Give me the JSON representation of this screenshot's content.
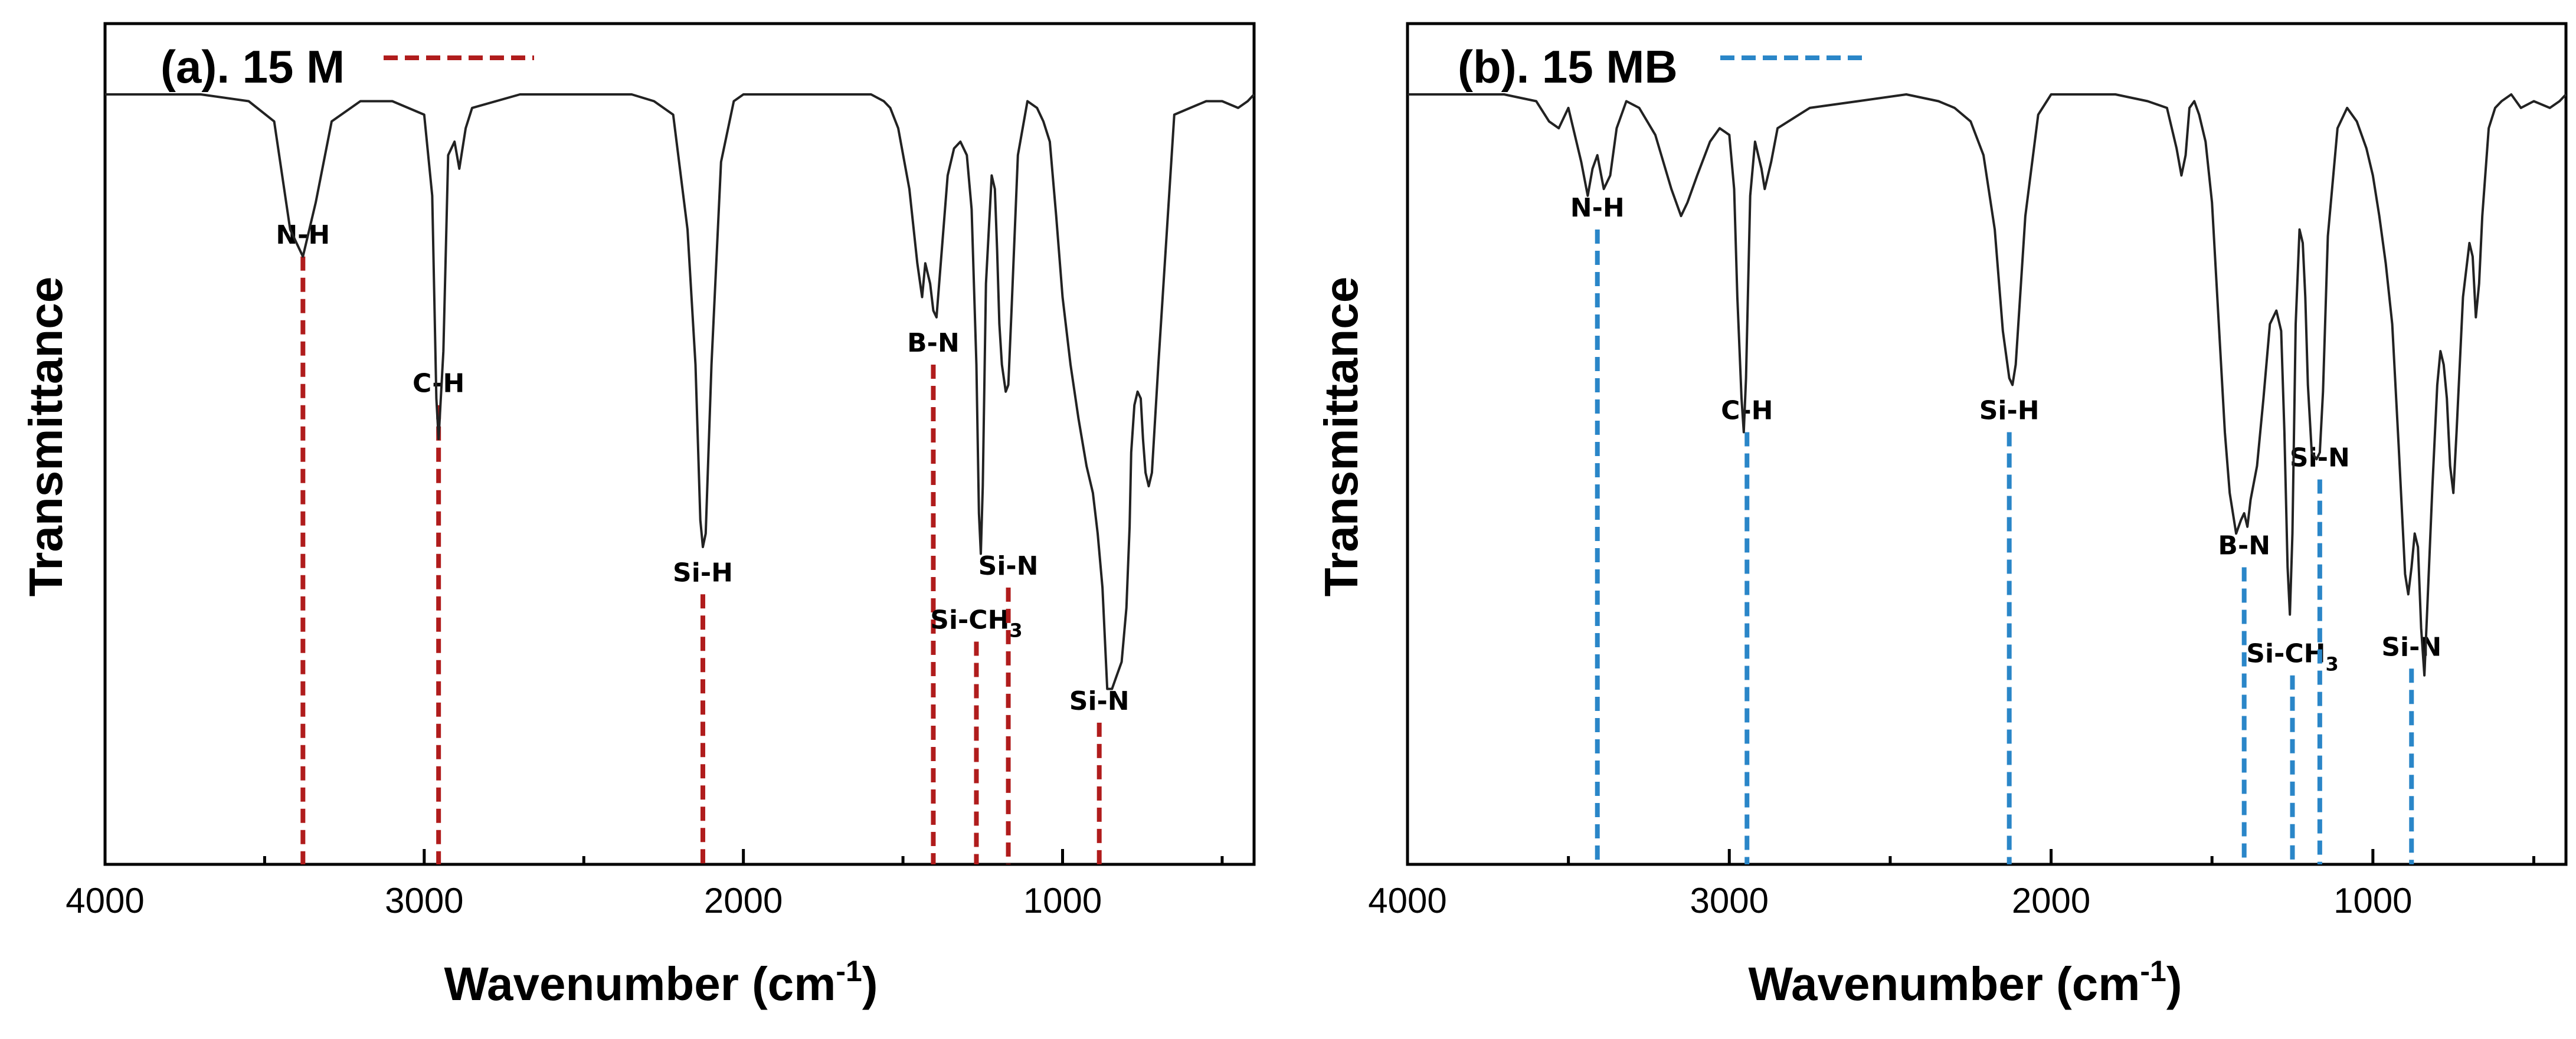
{
  "colors": {
    "a": "#b01c1c",
    "b": "#2a86c8"
  },
  "chart_data": [
    {
      "type": "line",
      "panel_label": "(a). 15 M",
      "legend_style": "dashed",
      "xlabel": "Wavenumber (cm",
      "xlabel_sup": "-1",
      "xlabel_tail": ")",
      "ylabel": "Transmittance",
      "xlim": [
        4000,
        400
      ],
      "ylim": [
        0,
        100
      ],
      "xticks": [
        4000,
        3000,
        2000,
        1000
      ],
      "xtick_labels": [
        "4000",
        "3000",
        "2000",
        "1000"
      ],
      "color": "#b01c1c",
      "series": [
        {
          "name": "15 M",
          "x": [
            4000,
            3700,
            3550,
            3470,
            3420,
            3380,
            3340,
            3290,
            3200,
            3100,
            3000,
            2975,
            2962,
            2955,
            2940,
            2925,
            2905,
            2890,
            2870,
            2850,
            2700,
            2500,
            2350,
            2280,
            2220,
            2175,
            2150,
            2135,
            2127,
            2118,
            2100,
            2070,
            2030,
            2000,
            1900,
            1800,
            1700,
            1600,
            1560,
            1540,
            1515,
            1480,
            1455,
            1440,
            1430,
            1415,
            1405,
            1395,
            1380,
            1360,
            1340,
            1320,
            1300,
            1285,
            1270,
            1262,
            1256,
            1250,
            1240,
            1222,
            1212,
            1205,
            1198,
            1190,
            1178,
            1170,
            1160,
            1140,
            1110,
            1080,
            1060,
            1040,
            1020,
            1000,
            975,
            950,
            925,
            905,
            890,
            875,
            860,
            845,
            830,
            815,
            800,
            790,
            785,
            775,
            765,
            755,
            748,
            740,
            730,
            720,
            700,
            650,
            600,
            550,
            500,
            450,
            420,
            400
          ],
          "y": [
            100,
            100,
            99,
            96,
            80,
            76,
            84,
            96,
            99,
            99,
            97,
            85,
            55,
            49,
            62,
            91,
            93,
            89,
            95,
            98,
            100,
            100,
            100,
            99,
            97,
            80,
            60,
            37,
            33,
            35,
            60,
            90,
            99,
            100,
            100,
            100,
            100,
            100,
            99,
            98,
            95,
            86,
            75,
            70,
            75,
            72,
            68,
            67,
            76,
            88,
            92,
            93,
            91,
            83,
            60,
            38,
            32,
            42,
            72,
            88,
            86,
            77,
            66,
            60,
            56,
            57,
            68,
            91,
            99,
            98,
            96,
            93,
            82,
            70,
            60,
            52,
            45,
            41,
            35,
            27,
            12,
            12,
            14,
            16,
            24,
            36,
            47,
            54,
            56,
            55,
            49,
            44,
            42,
            44,
            60,
            97,
            98,
            99,
            99,
            98,
            99,
            100
          ]
        }
      ],
      "annotations": [
        {
          "text": "N-H",
          "x": 3380,
          "y": 76
        },
        {
          "text": "C-H",
          "x": 2955,
          "y": 54
        },
        {
          "text": "Si-H",
          "x": 2127,
          "y": 26
        },
        {
          "text": "B-N",
          "x": 1405,
          "y": 60
        },
        {
          "text": "Si-CH",
          "sub": "3",
          "x": 1270,
          "y": 19
        },
        {
          "text": "Si-N",
          "x": 1170,
          "y": 27
        },
        {
          "text": "Si-N",
          "x": 885,
          "y": 7
        }
      ]
    },
    {
      "type": "line",
      "panel_label": "(b). 15 MB",
      "legend_style": "dashed",
      "xlabel": "Wavenumber (cm",
      "xlabel_sup": "-1",
      "xlabel_tail": ")",
      "ylabel": "Transmittance",
      "xlim": [
        4000,
        400
      ],
      "ylim": [
        0,
        100
      ],
      "xticks": [
        4000,
        3000,
        2000,
        1000
      ],
      "xtick_labels": [
        "4000",
        "3000",
        "2000",
        "1000"
      ],
      "color": "#2a86c8",
      "series": [
        {
          "name": "15 MB",
          "x": [
            4000,
            3700,
            3600,
            3560,
            3530,
            3500,
            3460,
            3440,
            3425,
            3410,
            3390,
            3370,
            3350,
            3320,
            3280,
            3230,
            3180,
            3150,
            3130,
            3100,
            3060,
            3030,
            3000,
            2985,
            2975,
            2962,
            2955,
            2948,
            2935,
            2920,
            2900,
            2890,
            2870,
            2850,
            2750,
            2600,
            2450,
            2350,
            2300,
            2250,
            2210,
            2175,
            2150,
            2130,
            2120,
            2110,
            2080,
            2040,
            2000,
            1900,
            1800,
            1700,
            1640,
            1610,
            1595,
            1582,
            1570,
            1555,
            1540,
            1520,
            1500,
            1480,
            1460,
            1445,
            1425,
            1410,
            1400,
            1390,
            1380,
            1360,
            1340,
            1320,
            1300,
            1285,
            1275,
            1265,
            1258,
            1250,
            1240,
            1228,
            1218,
            1210,
            1202,
            1190,
            1175,
            1165,
            1155,
            1140,
            1110,
            1080,
            1050,
            1020,
            1000,
            980,
            960,
            940,
            920,
            900,
            890,
            880,
            870,
            860,
            850,
            840,
            830,
            815,
            800,
            790,
            780,
            770,
            760,
            750,
            740,
            720,
            700,
            690,
            680,
            670,
            660,
            640,
            620,
            600,
            570,
            540,
            500,
            450,
            420,
            400
          ],
          "y": [
            100,
            100,
            99,
            96,
            95,
            98,
            90,
            85,
            89,
            91,
            86,
            88,
            95,
            99,
            98,
            94,
            86,
            82,
            84,
            88,
            93,
            95,
            94,
            86,
            70,
            55,
            50,
            58,
            85,
            93,
            89,
            86,
            90,
            95,
            98,
            99,
            100,
            99,
            98,
            96,
            91,
            80,
            65,
            58,
            57,
            60,
            82,
            97,
            100,
            100,
            100,
            99,
            98,
            92,
            88,
            91,
            98,
            99,
            97,
            93,
            84,
            67,
            50,
            41,
            35,
            37,
            38,
            36,
            40,
            45,
            55,
            66,
            68,
            65,
            50,
            30,
            23,
            35,
            66,
            80,
            78,
            70,
            57,
            47,
            46,
            47,
            56,
            79,
            95,
            98,
            96,
            92,
            88,
            82,
            75,
            66,
            48,
            29,
            26,
            30,
            35,
            33,
            21,
            14,
            25,
            42,
            57,
            62,
            60,
            55,
            45,
            41,
            50,
            70,
            78,
            76,
            67,
            72,
            82,
            95,
            98,
            99,
            100,
            98,
            99,
            98,
            99,
            100
          ]
        }
      ],
      "annotations": [
        {
          "text": "N-H",
          "x": 3410,
          "y": 80
        },
        {
          "text": "C-H",
          "x": 2945,
          "y": 50
        },
        {
          "text": "Si-H",
          "x": 2130,
          "y": 50
        },
        {
          "text": "B-N",
          "x": 1400,
          "y": 30
        },
        {
          "text": "Si-CH",
          "sub": "3",
          "x": 1250,
          "y": 14
        },
        {
          "text": "Si-N",
          "x": 1165,
          "y": 43
        },
        {
          "text": "Si-N",
          "x": 880,
          "y": 15
        }
      ]
    }
  ]
}
